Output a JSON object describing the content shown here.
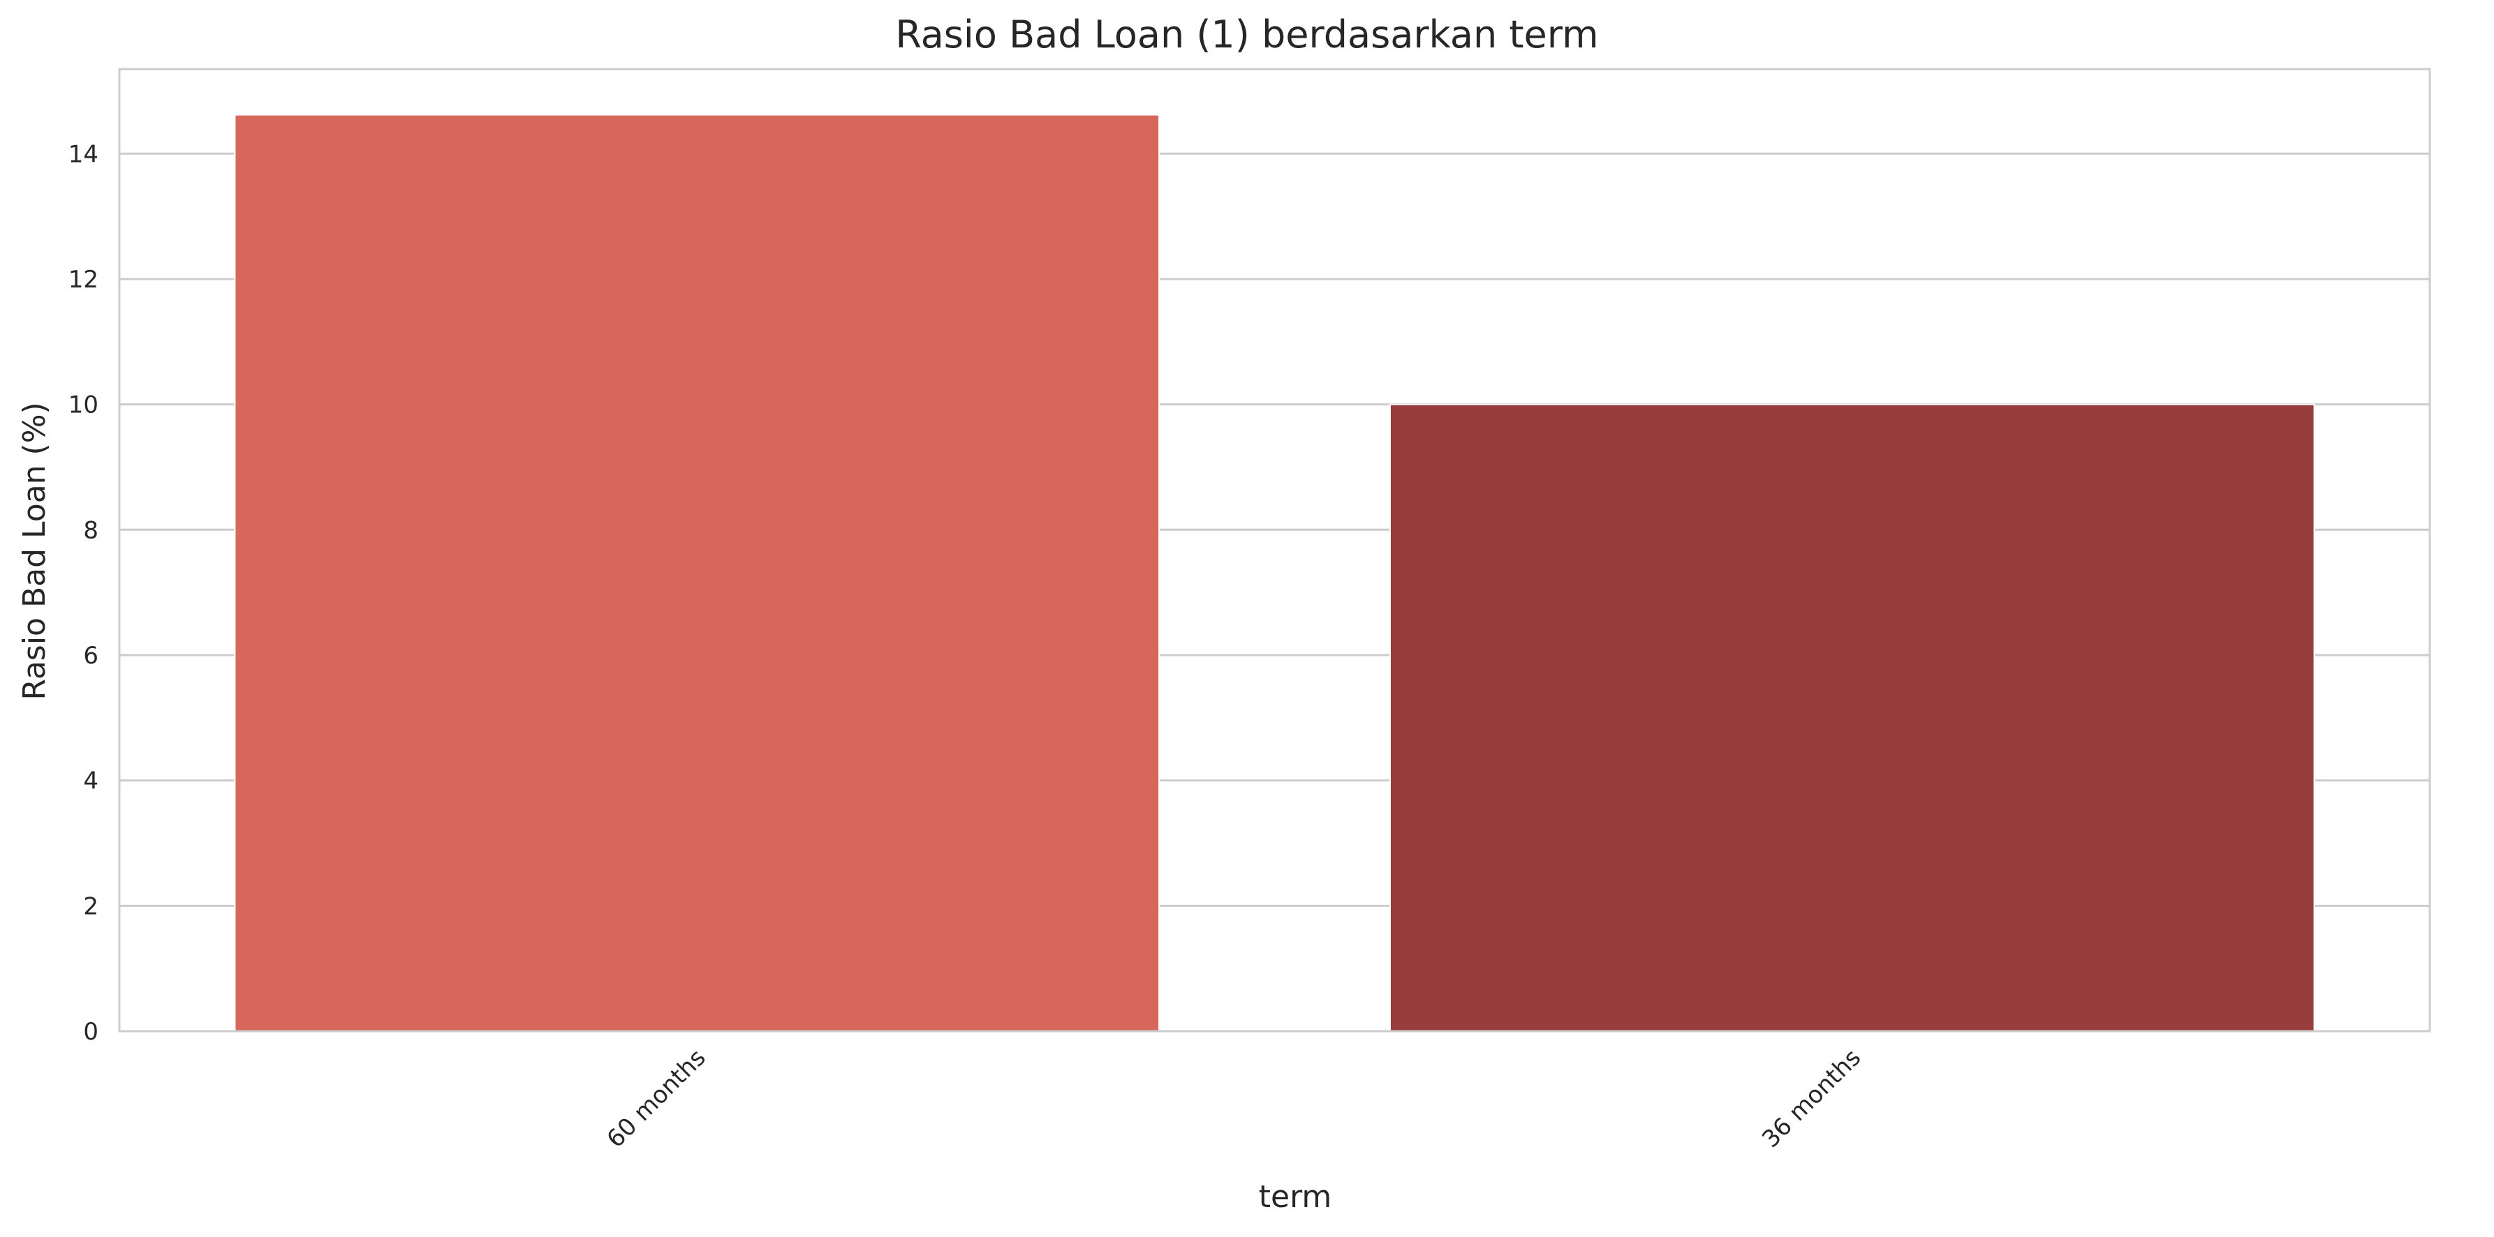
{
  "chart_data": {
    "type": "bar",
    "title": "Rasio Bad Loan (1) berdasarkan term",
    "xlabel": "term",
    "ylabel": "Rasio Bad Loan (%)",
    "categories": [
      "60 months",
      "36 months"
    ],
    "values": [
      14.62,
      10.0
    ],
    "colors": [
      "#d7675b",
      "#973d3b"
    ],
    "ylim": [
      0,
      15.35
    ],
    "yticks": [
      0,
      2,
      4,
      6,
      8,
      10,
      12,
      14
    ],
    "xtick_rotation": -45,
    "grid": true,
    "grid_axis": "y",
    "legend": "none"
  },
  "style": {
    "background": "#ffffff",
    "plot_background": "#ffffff",
    "grid_color": "#cccccc",
    "spine_color": "#cccccc",
    "text_color": "#262626"
  }
}
